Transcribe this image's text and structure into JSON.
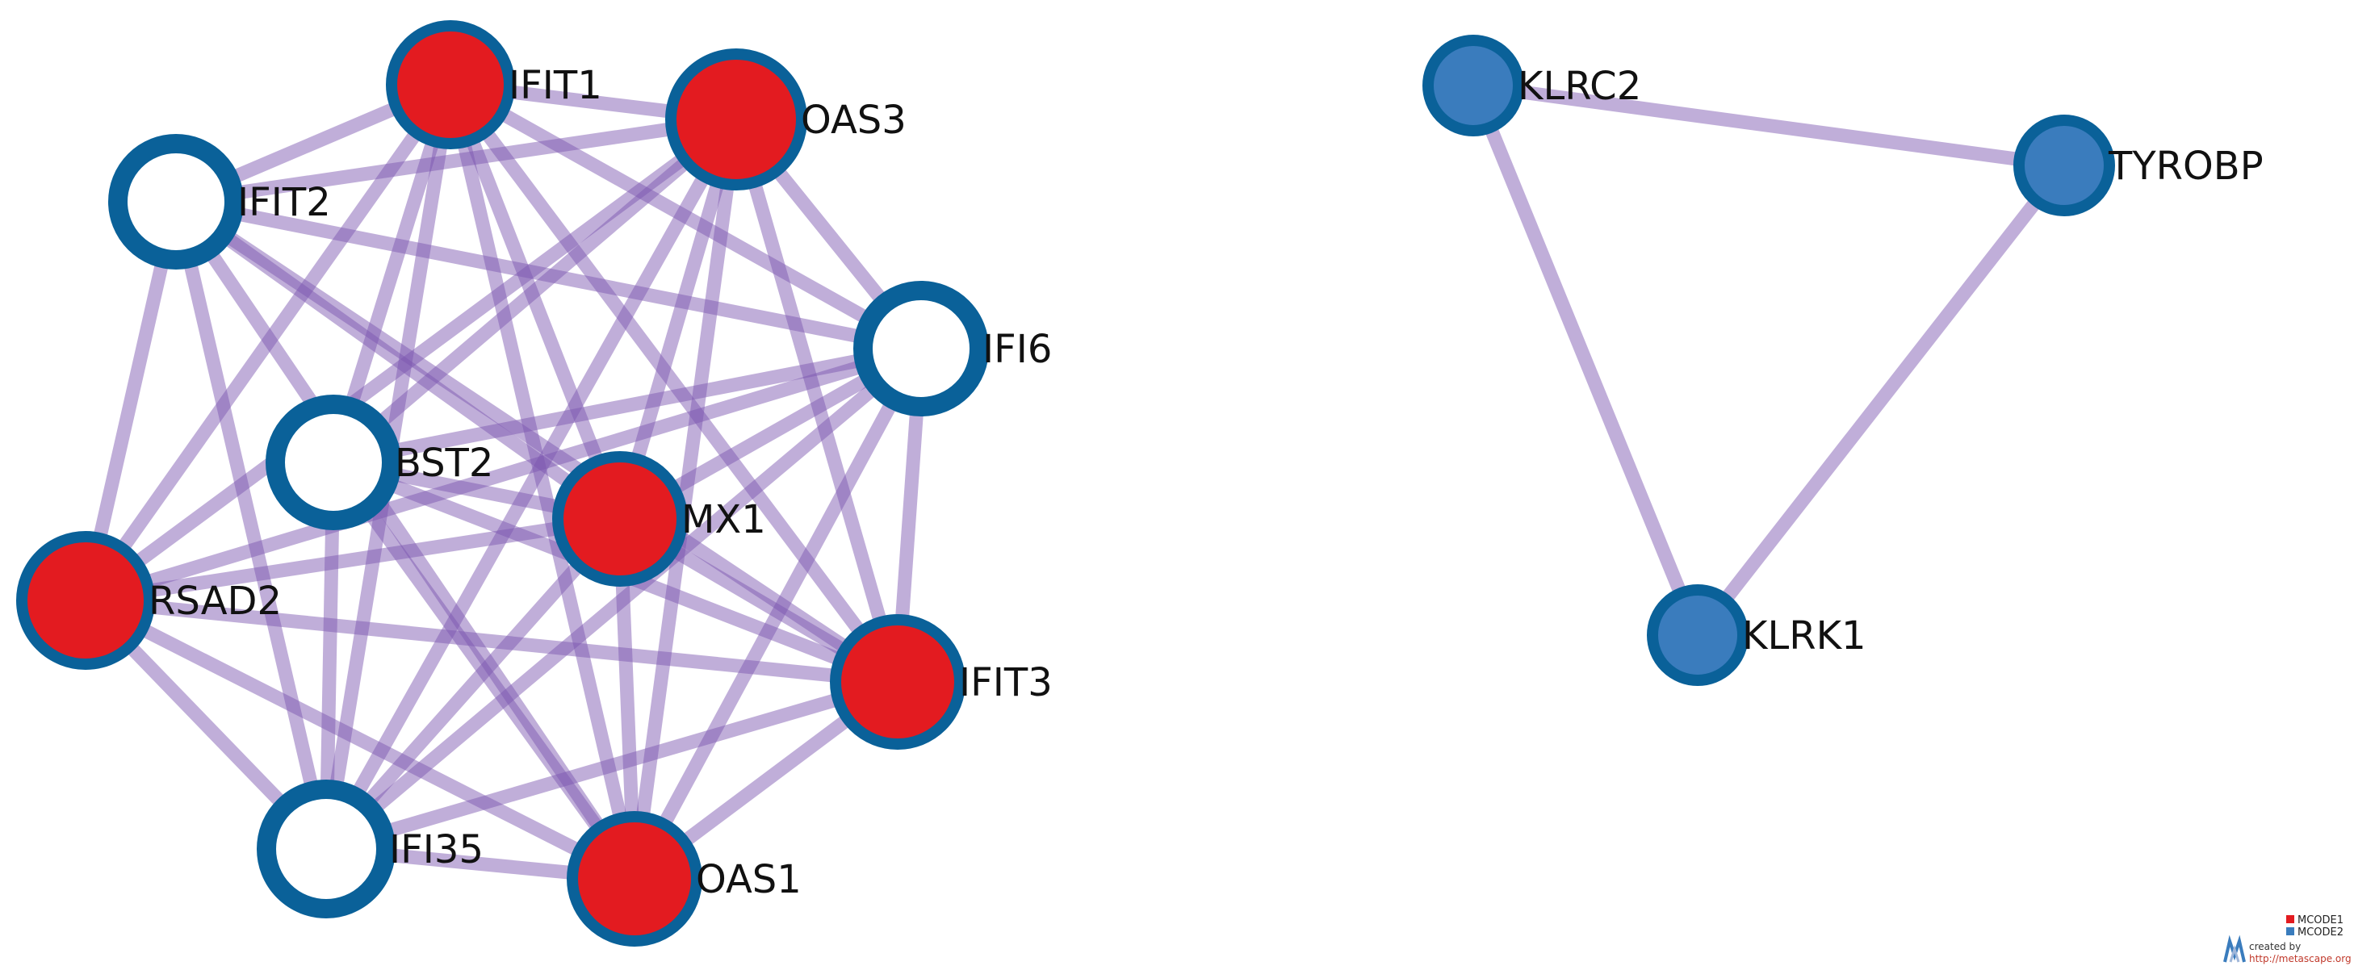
{
  "colors": {
    "edge": "#7b55b0",
    "ring": "#0a6199",
    "mcode1_fill": "#e31b20",
    "mcode2_fill": "#3a7cbd",
    "hollow_fill": "#ffffff",
    "label": "#111111"
  },
  "nodes": [
    {
      "id": "IFIT1",
      "label": "IFIT1",
      "fill": "mcode1"
    },
    {
      "id": "OAS3",
      "label": "OAS3",
      "fill": "mcode1"
    },
    {
      "id": "IFIT2",
      "label": "IFIT2",
      "fill": "hollow"
    },
    {
      "id": "IFI6",
      "label": "IFI6",
      "fill": "hollow"
    },
    {
      "id": "BST2",
      "label": "BST2",
      "fill": "hollow"
    },
    {
      "id": "MX1",
      "label": "MX1",
      "fill": "mcode1"
    },
    {
      "id": "RSAD2",
      "label": "RSAD2",
      "fill": "mcode1"
    },
    {
      "id": "IFIT3",
      "label": "IFIT3",
      "fill": "mcode1"
    },
    {
      "id": "IFI35",
      "label": "IFI35",
      "fill": "hollow"
    },
    {
      "id": "OAS1",
      "label": "OAS1",
      "fill": "mcode1"
    },
    {
      "id": "KLRC2",
      "label": "KLRC2",
      "fill": "mcode2"
    },
    {
      "id": "TYROBP",
      "label": "TYROBP",
      "fill": "mcode2"
    },
    {
      "id": "KLRK1",
      "label": "KLRK1",
      "fill": "mcode2"
    }
  ],
  "edges": [
    [
      "IFIT1",
      "OAS3"
    ],
    [
      "IFIT1",
      "IFIT2"
    ],
    [
      "IFIT1",
      "IFI6"
    ],
    [
      "IFIT1",
      "BST2"
    ],
    [
      "IFIT1",
      "MX1"
    ],
    [
      "IFIT1",
      "RSAD2"
    ],
    [
      "IFIT1",
      "IFIT3"
    ],
    [
      "IFIT1",
      "IFI35"
    ],
    [
      "IFIT1",
      "OAS1"
    ],
    [
      "OAS3",
      "IFIT2"
    ],
    [
      "OAS3",
      "IFI6"
    ],
    [
      "OAS3",
      "BST2"
    ],
    [
      "OAS3",
      "MX1"
    ],
    [
      "OAS3",
      "RSAD2"
    ],
    [
      "OAS3",
      "IFIT3"
    ],
    [
      "OAS3",
      "IFI35"
    ],
    [
      "OAS3",
      "OAS1"
    ],
    [
      "IFIT2",
      "IFI6"
    ],
    [
      "IFIT2",
      "MX1"
    ],
    [
      "IFIT2",
      "RSAD2"
    ],
    [
      "IFIT2",
      "IFIT3"
    ],
    [
      "IFIT2",
      "IFI35"
    ],
    [
      "IFIT2",
      "OAS1"
    ],
    [
      "IFI6",
      "BST2"
    ],
    [
      "IFI6",
      "MX1"
    ],
    [
      "IFI6",
      "RSAD2"
    ],
    [
      "IFI6",
      "IFIT3"
    ],
    [
      "IFI6",
      "IFI35"
    ],
    [
      "IFI6",
      "OAS1"
    ],
    [
      "BST2",
      "MX1"
    ],
    [
      "BST2",
      "IFIT3"
    ],
    [
      "BST2",
      "IFI35"
    ],
    [
      "BST2",
      "OAS1"
    ],
    [
      "MX1",
      "RSAD2"
    ],
    [
      "MX1",
      "IFIT3"
    ],
    [
      "MX1",
      "IFI35"
    ],
    [
      "MX1",
      "OAS1"
    ],
    [
      "RSAD2",
      "IFIT3"
    ],
    [
      "RSAD2",
      "IFI35"
    ],
    [
      "RSAD2",
      "OAS1"
    ],
    [
      "IFIT3",
      "IFI35"
    ],
    [
      "IFIT3",
      "OAS1"
    ],
    [
      "IFI35",
      "OAS1"
    ],
    [
      "KLRC2",
      "TYROBP"
    ],
    [
      "KLRC2",
      "KLRK1"
    ],
    [
      "TYROBP",
      "KLRK1"
    ]
  ],
  "legend": [
    {
      "label": "MCODE1",
      "color": "#e31b20"
    },
    {
      "label": "MCODE2",
      "color": "#3a7cbd"
    }
  ],
  "credit": {
    "line1": "created by",
    "line2": "http://metascape.org"
  }
}
